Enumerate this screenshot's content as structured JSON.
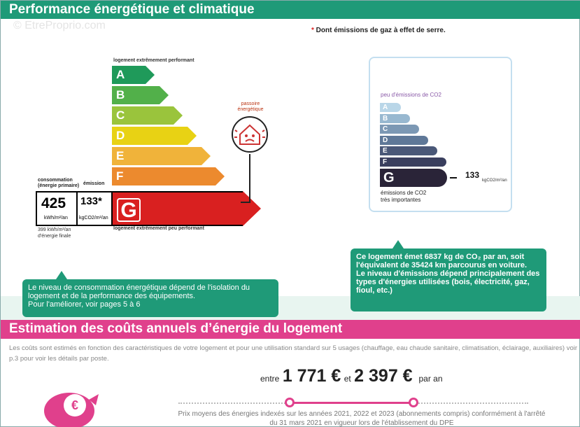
{
  "header1": {
    "title": "Performance énergétique et climatique"
  },
  "watermark": "© EtreProprio.com",
  "note": {
    "star": "*",
    "text": " Dont émissions de gaz à effet de serre."
  },
  "energy": {
    "label_top": "logement extrêmement performant",
    "label_bottom": "logement extrêmement peu performant",
    "classes": [
      "A",
      "B",
      "C",
      "D",
      "E",
      "F"
    ],
    "colors": [
      "#1f9a5a",
      "#52b04a",
      "#9ac43c",
      "#e8d214",
      "#f0b33a",
      "#ec8a2e"
    ],
    "current": "G",
    "current_color": "#d92020",
    "conso_head": "consommation\n(énergie primaire)",
    "emission_head": "émission",
    "conso_value": "425",
    "conso_unit": "kWh/m²/an",
    "emission_value": "133*",
    "emission_unit": "kgCO2/m²/an",
    "final": "399 kWh/m²/an\nd'énergie finale",
    "passoire": "passoire\nénergétique"
  },
  "co2": {
    "title": "peu d'émissions de CO2",
    "classes": [
      "A",
      "B",
      "C",
      "D",
      "E",
      "F"
    ],
    "colors": [
      "#b9d6e8",
      "#98b8d0",
      "#7c98b4",
      "#5f7898",
      "#4a5878",
      "#3a3f5e"
    ],
    "current": "G",
    "value": "133",
    "unit": "kgCO2/m²/an",
    "bottom": "émissions de CO2\ntrès importantes"
  },
  "bubble1": {
    "text": "Le niveau de consommation énergétique dépend de l'isolation du logement et de la performance des équipements.\nPour l'améliorer, voir pages 5 à 6"
  },
  "bubble2": {
    "text": "Ce logement émet 6837  kg de CO₂ par an, soit l'équivalent de 35424 km parcourus en voiture.\nLe niveau d'émissions dépend principalement des types d'énergies utilisées (bois, électricité, gaz, fioul, etc.)"
  },
  "header2": {
    "title": "Estimation des coûts annuels d’énergie du logement"
  },
  "desc": "Les coûts sont estimés en fonction des caractéristiques de votre logement et pour une utilisation standard sur 5 usages (chauffage, eau chaude sanitaire, climatisation, éclairage, auxiliaires) voir p.3 pour voir les détails par poste.",
  "price": {
    "entre": "entre",
    "min": "1 771 €",
    "et": "et",
    "max": "2 397 €",
    "par_an": "par an"
  },
  "footnote": "Prix moyens des énergies indexés sur les années 2021, 2022 et 2023  (abonnements compris) conformément à l'arrêté du 31 mars 2021 en vigueur lors de l'établissement du DPE",
  "pig_symbol": "€"
}
